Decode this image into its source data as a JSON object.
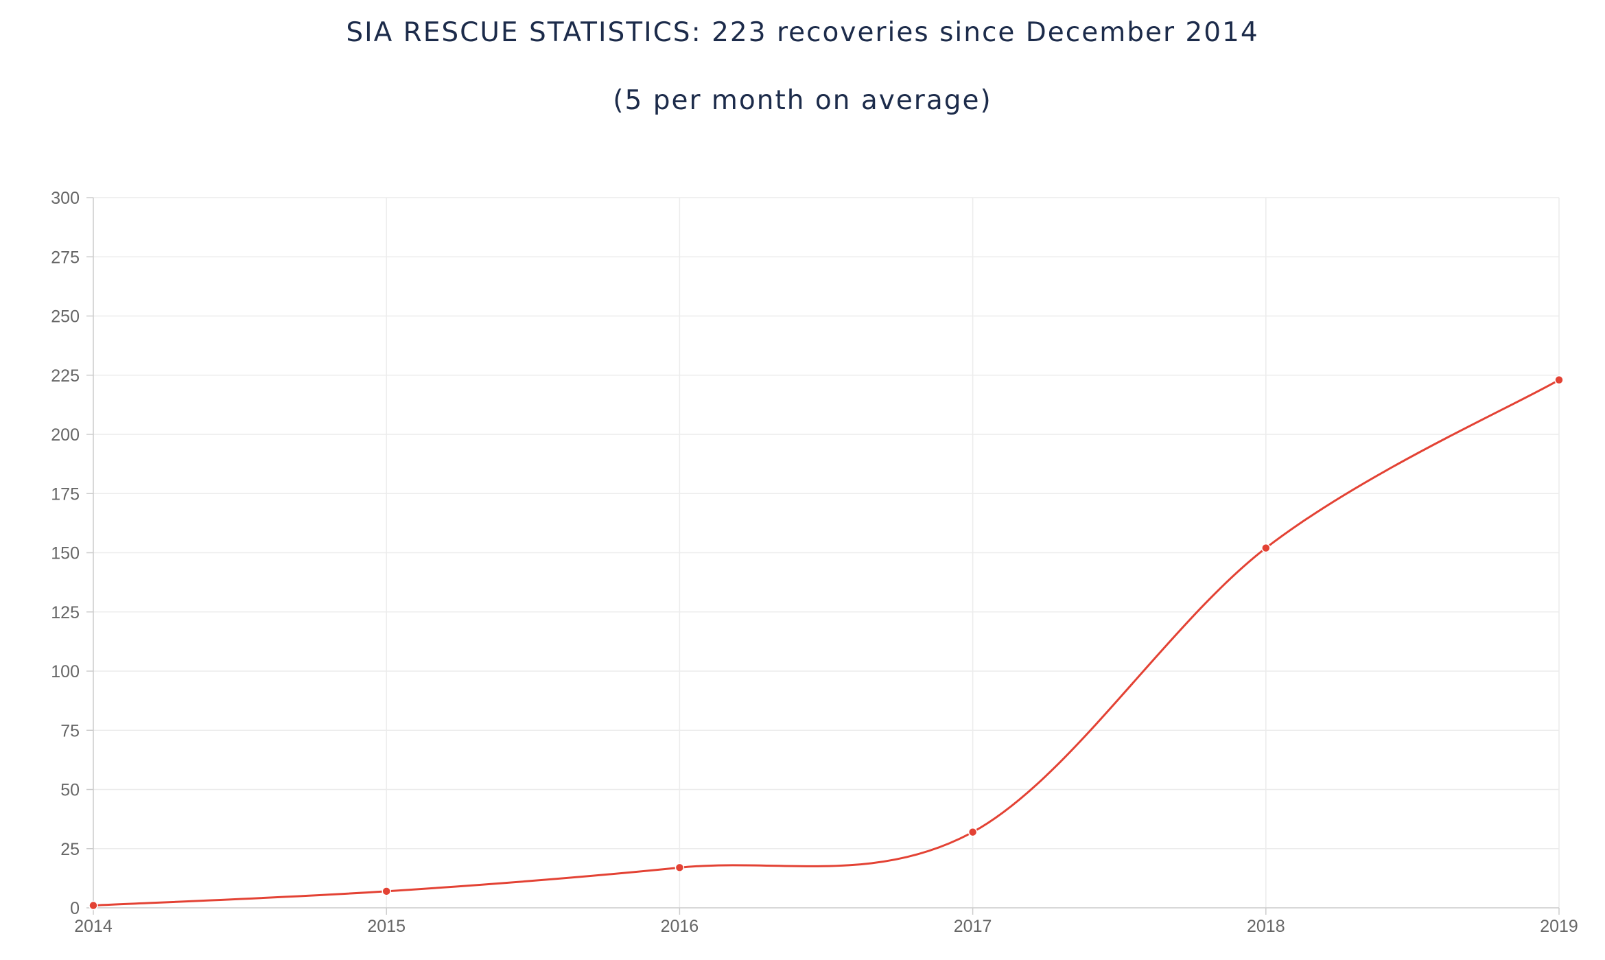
{
  "chart_data": {
    "type": "line",
    "title": "SIA RESCUE STATISTICS: 223 recoveries since December 2014",
    "subtitle": "(5 per month on average)",
    "xlabel": "",
    "ylabel": "",
    "x": [
      2014,
      2015,
      2016,
      2017,
      2018,
      2019
    ],
    "xlim": [
      2014,
      2019
    ],
    "ylim": [
      0,
      300
    ],
    "x_ticks": [
      "2014",
      "2015",
      "2016",
      "2017",
      "2018",
      "2019"
    ],
    "y_ticks": [
      "0",
      "25",
      "50",
      "75",
      "100",
      "125",
      "150",
      "175",
      "200",
      "225",
      "250",
      "275",
      "300"
    ],
    "grid": true,
    "legend": "none",
    "series": [
      {
        "values": [
          1,
          7,
          17,
          32,
          152,
          223
        ],
        "color": "#e34234"
      }
    ]
  }
}
